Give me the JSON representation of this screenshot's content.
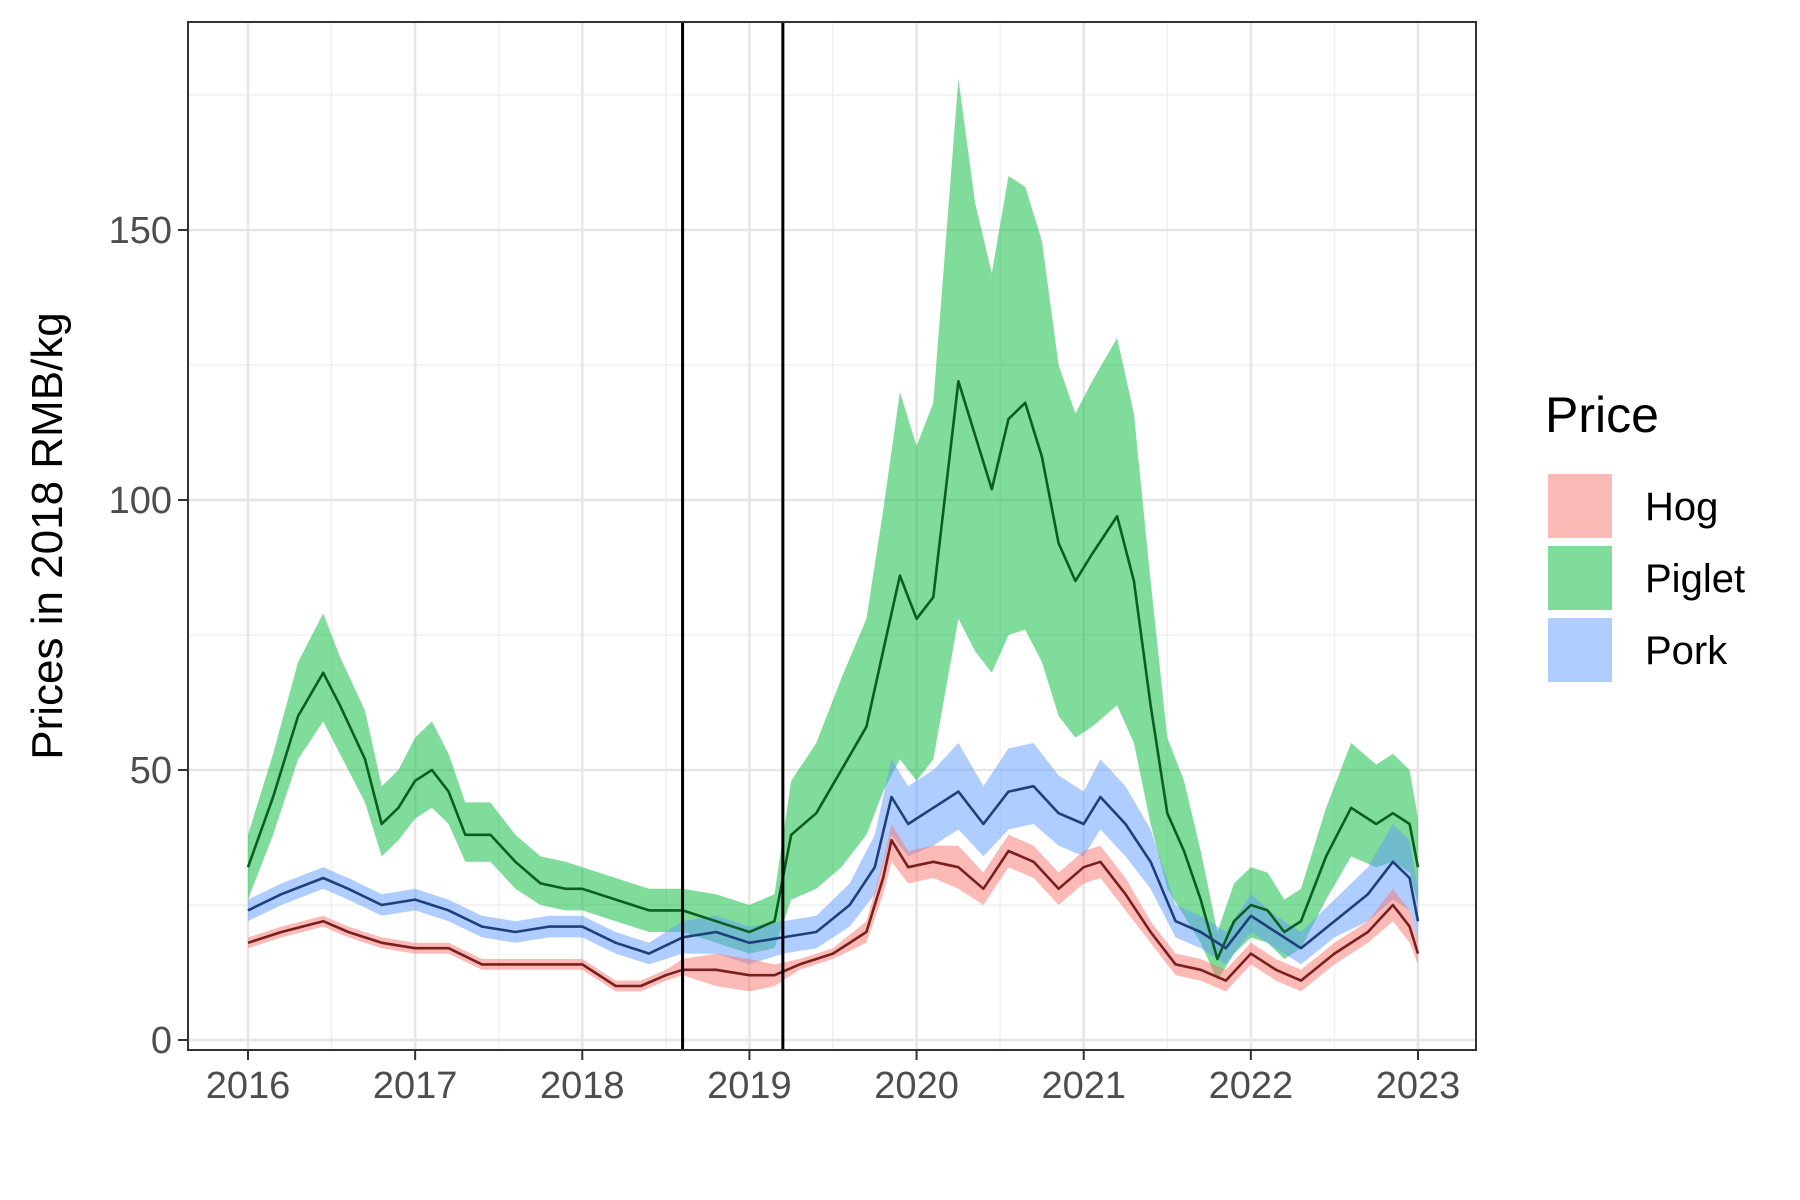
{
  "chart_data": {
    "type": "area",
    "ylabel": "Prices in 2018 RMB/kg",
    "xlabel": "",
    "xlim": [
      2016.0,
      2023.0
    ],
    "ylim": [
      0,
      180
    ],
    "x_ticks": [
      2016,
      2017,
      2018,
      2019,
      2020,
      2021,
      2022,
      2023
    ],
    "x_tick_labels": [
      "2016",
      "2017",
      "2018",
      "2019",
      "2020",
      "2021",
      "2022",
      "2023"
    ],
    "y_ticks": [
      0,
      50,
      100,
      150
    ],
    "y_tick_labels": [
      "0",
      "50",
      "100",
      "150"
    ],
    "grid": true,
    "vertical_lines": [
      2018.6,
      2019.2
    ],
    "legend": {
      "title": "Price",
      "position": "right",
      "entries": [
        "Hog",
        "Piglet",
        "Pork"
      ]
    },
    "colors": {
      "Hog": {
        "band": "#f8766d",
        "line": "#7a1f1f"
      },
      "Piglet": {
        "band": "#00ba38",
        "line": "#0b5e1e"
      },
      "Pork": {
        "band": "#619cff",
        "line": "#1f3f7a"
      }
    },
    "series": [
      {
        "name": "Piglet",
        "x": [
          2016.0,
          2016.15,
          2016.3,
          2016.45,
          2016.55,
          2016.7,
          2016.8,
          2016.9,
          2017.0,
          2017.1,
          2017.2,
          2017.3,
          2017.45,
          2017.6,
          2017.75,
          2017.9,
          2018.0,
          2018.2,
          2018.4,
          2018.6,
          2018.8,
          2019.0,
          2019.15,
          2019.25,
          2019.4,
          2019.55,
          2019.7,
          2019.8,
          2019.9,
          2020.0,
          2020.1,
          2020.25,
          2020.35,
          2020.45,
          2020.55,
          2020.65,
          2020.75,
          2020.85,
          2020.95,
          2021.05,
          2021.2,
          2021.3,
          2021.4,
          2021.5,
          2021.6,
          2021.7,
          2021.8,
          2021.9,
          2022.0,
          2022.1,
          2022.2,
          2022.3,
          2022.45,
          2022.6,
          2022.75,
          2022.85,
          2022.95,
          2023.0
        ],
        "value": [
          32,
          45,
          60,
          68,
          62,
          52,
          40,
          43,
          48,
          50,
          46,
          38,
          38,
          33,
          29,
          28,
          28,
          26,
          24,
          24,
          22,
          20,
          22,
          38,
          42,
          50,
          58,
          72,
          86,
          78,
          82,
          122,
          112,
          102,
          115,
          118,
          108,
          92,
          85,
          90,
          97,
          85,
          62,
          42,
          35,
          26,
          15,
          22,
          25,
          24,
          20,
          22,
          34,
          43,
          40,
          42,
          40,
          32
        ],
        "lower": [
          26,
          38,
          52,
          59,
          53,
          44,
          34,
          37,
          41,
          43,
          40,
          33,
          33,
          28,
          25,
          24,
          24,
          22,
          20,
          20,
          18,
          16,
          17,
          26,
          28,
          32,
          38,
          46,
          52,
          48,
          52,
          78,
          72,
          68,
          75,
          76,
          70,
          60,
          56,
          58,
          62,
          55,
          40,
          28,
          23,
          18,
          11,
          16,
          19,
          18,
          15,
          17,
          26,
          34,
          32,
          33,
          31,
          25
        ],
        "upper": [
          38,
          53,
          70,
          79,
          71,
          61,
          47,
          50,
          56,
          59,
          53,
          44,
          44,
          38,
          34,
          33,
          32,
          30,
          28,
          28,
          27,
          25,
          27,
          48,
          55,
          67,
          78,
          98,
          120,
          110,
          118,
          178,
          155,
          142,
          160,
          158,
          148,
          125,
          116,
          122,
          130,
          116,
          85,
          56,
          48,
          35,
          20,
          29,
          32,
          31,
          26,
          28,
          43,
          55,
          51,
          53,
          50,
          41
        ]
      },
      {
        "name": "Pork",
        "x": [
          2016.0,
          2016.2,
          2016.45,
          2016.6,
          2016.8,
          2017.0,
          2017.2,
          2017.4,
          2017.6,
          2017.8,
          2018.0,
          2018.2,
          2018.4,
          2018.6,
          2018.8,
          2019.0,
          2019.2,
          2019.4,
          2019.6,
          2019.75,
          2019.85,
          2019.95,
          2020.1,
          2020.25,
          2020.4,
          2020.55,
          2020.7,
          2020.85,
          2021.0,
          2021.1,
          2021.25,
          2021.4,
          2021.55,
          2021.7,
          2021.85,
          2022.0,
          2022.15,
          2022.3,
          2022.5,
          2022.7,
          2022.85,
          2022.95,
          2023.0
        ],
        "value": [
          24,
          27,
          30,
          28,
          25,
          26,
          24,
          21,
          20,
          21,
          21,
          18,
          16,
          19,
          20,
          18,
          19,
          20,
          25,
          32,
          45,
          40,
          43,
          46,
          40,
          46,
          47,
          42,
          40,
          45,
          40,
          33,
          22,
          20,
          17,
          23,
          20,
          17,
          22,
          27,
          33,
          30,
          22
        ],
        "lower": [
          22,
          25,
          28,
          26,
          23,
          24,
          22,
          19,
          18,
          19,
          19,
          16,
          14,
          16,
          16,
          14,
          16,
          17,
          21,
          27,
          38,
          34,
          36,
          39,
          34,
          39,
          40,
          36,
          34,
          39,
          34,
          28,
          19,
          17,
          14,
          20,
          17,
          14,
          19,
          22,
          26,
          24,
          18
        ],
        "upper": [
          26,
          29,
          32,
          30,
          27,
          28,
          26,
          23,
          22,
          23,
          23,
          20,
          18,
          22,
          23,
          21,
          22,
          23,
          29,
          38,
          52,
          47,
          50,
          55,
          47,
          54,
          55,
          49,
          46,
          52,
          47,
          39,
          25,
          23,
          20,
          27,
          23,
          20,
          26,
          32,
          40,
          37,
          28
        ]
      },
      {
        "name": "Hog",
        "x": [
          2016.0,
          2016.2,
          2016.45,
          2016.6,
          2016.8,
          2017.0,
          2017.2,
          2017.4,
          2017.6,
          2017.8,
          2018.0,
          2018.2,
          2018.35,
          2018.5,
          2018.6,
          2018.8,
          2019.0,
          2019.15,
          2019.3,
          2019.5,
          2019.7,
          2019.8,
          2019.85,
          2019.95,
          2020.1,
          2020.25,
          2020.4,
          2020.55,
          2020.7,
          2020.85,
          2021.0,
          2021.1,
          2021.25,
          2021.4,
          2021.55,
          2021.7,
          2021.85,
          2022.0,
          2022.15,
          2022.3,
          2022.5,
          2022.7,
          2022.85,
          2022.95,
          2023.0
        ],
        "value": [
          18,
          20,
          22,
          20,
          18,
          17,
          17,
          14,
          14,
          14,
          14,
          10,
          10,
          12,
          13,
          13,
          12,
          12,
          14,
          16,
          20,
          30,
          37,
          32,
          33,
          32,
          28,
          35,
          33,
          28,
          32,
          33,
          27,
          20,
          14,
          13,
          11,
          16,
          13,
          11,
          16,
          20,
          25,
          21,
          16
        ],
        "lower": [
          17,
          19,
          21,
          19,
          17,
          16,
          16,
          13,
          13,
          13,
          13,
          9,
          9,
          11,
          12,
          10,
          9,
          10,
          13,
          15,
          18,
          27,
          33,
          29,
          30,
          28,
          25,
          32,
          30,
          25,
          29,
          30,
          24,
          18,
          12,
          11,
          9,
          14,
          11,
          9,
          14,
          18,
          22,
          18,
          14
        ],
        "upper": [
          19,
          21,
          23,
          21,
          19,
          18,
          18,
          15,
          15,
          15,
          15,
          11,
          11,
          13,
          15,
          16,
          15,
          14,
          15,
          17,
          22,
          33,
          40,
          35,
          36,
          36,
          31,
          38,
          36,
          31,
          35,
          36,
          30,
          22,
          16,
          15,
          13,
          18,
          15,
          13,
          18,
          22,
          28,
          24,
          18
        ]
      }
    ]
  }
}
